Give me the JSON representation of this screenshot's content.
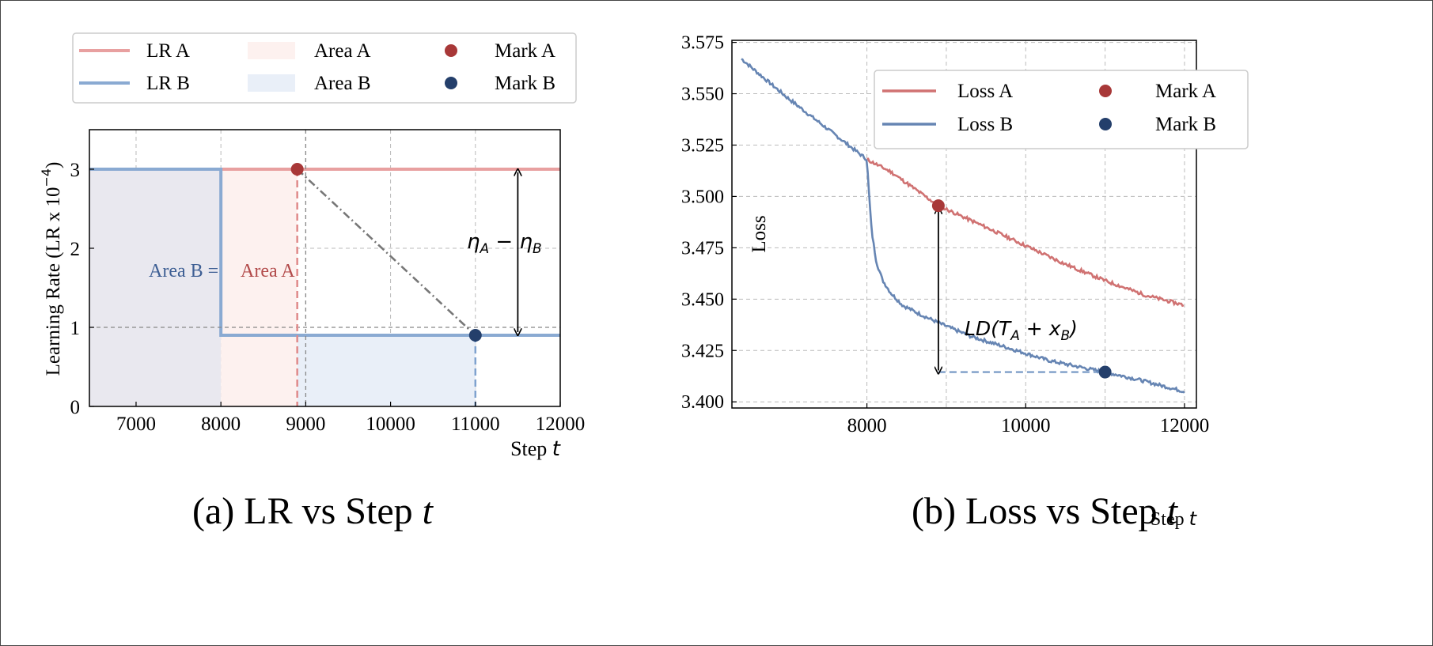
{
  "colors": {
    "lr_a": "#e8a0a0",
    "lr_b": "#8aaad2",
    "area_a": "#fdf1ef",
    "area_b": "#e9eff8",
    "area_overlap": "#e9e8ef",
    "mark_a": "#a83838",
    "mark_b": "#243f6b",
    "loss_a": "#d07272",
    "loss_b": "#6685b3",
    "annot_a": "#b24a4a",
    "annot_b": "#3e5f94",
    "grid": "#bbbbbb"
  },
  "chart_data": [
    {
      "type": "line",
      "caption": "(a) LR vs Step",
      "caption_var": "t",
      "xlabel": "Step",
      "xlabel_var": "t",
      "ylabel": "Learning Rate (LR x 10",
      "ylabel_exp": "−4",
      "ylabel_close": ")",
      "xlim": [
        6450,
        12000
      ],
      "ylim": [
        0,
        3.5
      ],
      "xticks": [
        "7000",
        "8000",
        "9000",
        "10000",
        "11000",
        "12000"
      ],
      "xtick_values": [
        7000,
        8000,
        9000,
        10000,
        11000,
        12000
      ],
      "yticks": [
        "0",
        "1",
        "2",
        "3"
      ],
      "ytick_values": [
        0,
        1,
        2,
        3
      ],
      "grid": true,
      "legend": {
        "placement": "top",
        "entries": [
          {
            "label": "LR A",
            "kind": "line",
            "color_key": "lr_a"
          },
          {
            "label": "Area A",
            "kind": "patch",
            "color_key": "area_a"
          },
          {
            "label": "Mark A",
            "kind": "marker",
            "color_key": "mark_a"
          },
          {
            "label": "LR B",
            "kind": "line",
            "color_key": "lr_b"
          },
          {
            "label": "Area B",
            "kind": "patch",
            "color_key": "area_b"
          },
          {
            "label": "Mark B",
            "kind": "marker",
            "color_key": "mark_b"
          }
        ]
      },
      "series": [
        {
          "name": "LR A",
          "x": [
            6450,
            12000
          ],
          "y": [
            3.0,
            3.0
          ]
        },
        {
          "name": "LR B",
          "x": [
            6450,
            8000,
            8000,
            12000
          ],
          "y": [
            3.0,
            3.0,
            0.9,
            0.9
          ]
        }
      ],
      "areas": [
        {
          "name": "Area A",
          "x": [
            8000,
            8900
          ],
          "y": [
            0,
            3.0
          ]
        },
        {
          "name": "Area B",
          "x": [
            8900,
            11000
          ],
          "y": [
            0,
            0.9
          ]
        }
      ],
      "marks": [
        {
          "name": "Mark A",
          "x": 8900,
          "y": 3.0
        },
        {
          "name": "Mark B",
          "x": 11000,
          "y": 0.9
        }
      ],
      "annotations": {
        "eta_label": "η_A − η_B",
        "area_b_text": "Area B =",
        "area_a_text": "Area A",
        "dashed_x": 9000,
        "dashed_y": 1.0,
        "arrow_x": 11500
      }
    },
    {
      "type": "line",
      "caption": "(b) Loss vs Step",
      "caption_var": "t",
      "xlabel": "Step",
      "xlabel_var": "t",
      "ylabel": "Loss",
      "xlim": [
        6300,
        12150
      ],
      "ylim": [
        3.397,
        3.576
      ],
      "xticks": [
        "8000",
        "10000",
        "12000"
      ],
      "xtick_values": [
        8000,
        10000,
        12000
      ],
      "yticks": [
        "3.400",
        "3.425",
        "3.450",
        "3.475",
        "3.500",
        "3.525",
        "3.550",
        "3.575"
      ],
      "ytick_values": [
        3.4,
        3.425,
        3.45,
        3.475,
        3.5,
        3.525,
        3.55,
        3.575
      ],
      "grid": true,
      "legend": {
        "placement": "top-right",
        "entries": [
          {
            "label": "Loss A",
            "kind": "line",
            "color_key": "loss_a"
          },
          {
            "label": "Mark A",
            "kind": "marker",
            "color_key": "mark_a"
          },
          {
            "label": "Loss B",
            "kind": "line",
            "color_key": "loss_b"
          },
          {
            "label": "Mark B",
            "kind": "marker",
            "color_key": "mark_b"
          }
        ]
      },
      "series": [
        {
          "name": "Loss A",
          "anchors_x": [
            6420,
            6600,
            7000,
            7400,
            7800,
            8000,
            8300,
            8900,
            9500,
            10000,
            10500,
            11000,
            11500,
            12000
          ],
          "anchors_y": [
            3.567,
            3.561,
            3.548,
            3.536,
            3.524,
            3.518,
            3.512,
            3.4955,
            3.485,
            3.476,
            3.467,
            3.459,
            3.452,
            3.447
          ]
        },
        {
          "name": "Loss B",
          "anchors_x": [
            6420,
            6600,
            7000,
            7400,
            7800,
            8000,
            8020,
            8060,
            8120,
            8200,
            8300,
            8450,
            8650,
            8900,
            9300,
            9800,
            10300,
            10800,
            11000,
            11400,
            12000
          ],
          "anchors_y": [
            3.567,
            3.561,
            3.548,
            3.536,
            3.524,
            3.518,
            3.505,
            3.483,
            3.468,
            3.459,
            3.453,
            3.447,
            3.443,
            3.4385,
            3.432,
            3.426,
            3.42,
            3.416,
            3.4145,
            3.411,
            3.405
          ]
        }
      ],
      "marks": [
        {
          "name": "Mark A",
          "x": 8900,
          "y": 3.4955
        },
        {
          "name": "Mark B",
          "x": 11000,
          "y": 3.4145
        }
      ],
      "annotations": {
        "ld_label": "LD(T_A + x_B)",
        "arrow_x": 8900,
        "dashed_y": 3.4145,
        "dashed_from_x": 8900,
        "dashed_to_x": 11000
      }
    }
  ]
}
